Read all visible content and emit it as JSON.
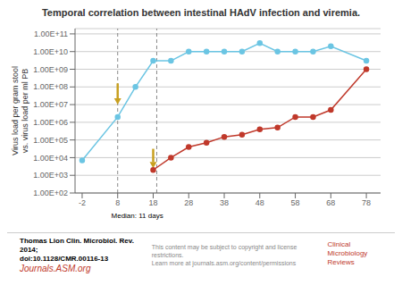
{
  "chart_data": {
    "type": "line",
    "title": "Temporal correlation between intestinal HAdV infection and viremia.",
    "y_label": "Virus load per gram stool\nvs. virus load per ml PB",
    "log": "y",
    "grid": true,
    "xlim": [
      -4,
      82
    ],
    "xticks": [
      -2,
      8,
      18,
      28,
      38,
      48,
      58,
      68,
      78
    ],
    "ylim": [
      100,
      199526231496.8879
    ],
    "yticks": [
      {
        "value": 100,
        "label": "1.00E+02"
      },
      {
        "value": 1000,
        "label": "1.00E+03"
      },
      {
        "value": 10000,
        "label": "1.00E+04"
      },
      {
        "value": 100000,
        "label": "1.00E+05"
      },
      {
        "value": 1000000,
        "label": "1.00E+06"
      },
      {
        "value": 10000000,
        "label": "1.00E+07"
      },
      {
        "value": 100000000,
        "label": "1.00E+08"
      },
      {
        "value": 1000000000,
        "label": "1.00E+09"
      },
      {
        "value": 10000000000,
        "label": "1.00E+10"
      },
      {
        "value": 100000000000,
        "label": "1.00E+11"
      }
    ],
    "series": [
      {
        "color": "#6bc5e3",
        "marker": "circle",
        "x": [
          -2,
          8,
          13,
          18,
          23,
          28,
          33,
          38,
          43,
          48,
          53,
          58,
          63,
          68,
          78
        ],
        "values": [
          7000.0,
          2000000.0,
          100000000.0,
          3000000000.0,
          3000000000.0,
          10000000000.0,
          10000000000.0,
          10000000000.0,
          10000000000.0,
          30000000000.0,
          10000000000.0,
          10000000000.0,
          10000000000.0,
          20000000000.0,
          3000000000.0
        ]
      },
      {
        "color": "#c0392b",
        "marker": "circle",
        "x": [
          18,
          23,
          28,
          33,
          38,
          43,
          48,
          53,
          58,
          63,
          68,
          78
        ],
        "values": [
          2000.0,
          10000.0,
          40000.0,
          70000.0,
          150000.0,
          200000.0,
          400000.0,
          500000.0,
          2000000.0,
          2000000.0,
          5000000.0,
          1000000000.0
        ]
      }
    ],
    "vlines": [
      8,
      19
    ],
    "arrows": [
      {
        "x": 8,
        "y_from": 158489319.2461111,
        "y_to": 10000000,
        "color": "#c8a020"
      },
      {
        "x": 18,
        "y_from": 31622.776601683792,
        "y_to": 2511.886431509582,
        "color": "#c8a020"
      }
    ],
    "annotations": [
      {
        "text": "Median: 11 days",
        "x": 13.5
      }
    ],
    "footer": {
      "citation": "Thomas Lion Clin. Microbiol. Rev. 2014;",
      "doi": "doi:10.1128/CMR.00116-13",
      "journal": "Journals.ASM.org",
      "notice": "This content may be subject to copyright and license restrictions.\nLearn more at journals.asm.org/content/permissions",
      "brand": "Clinical Microbiology\nReviews"
    }
  }
}
